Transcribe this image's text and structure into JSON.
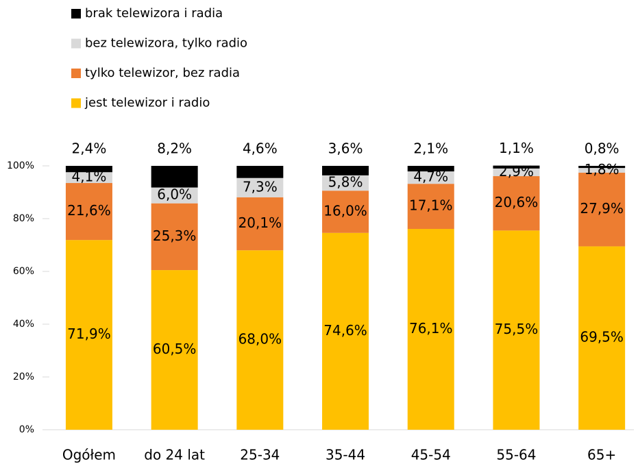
{
  "chart_data": {
    "type": "stacked_bar",
    "categories": [
      "Ogółem",
      "do 24 lat",
      "25-34",
      "35-44",
      "45-54",
      "55-64",
      "65+"
    ],
    "series": [
      {
        "name": "jest telewizor i radio",
        "color": "#ffc000",
        "values": [
          71.9,
          60.5,
          68.0,
          74.6,
          76.1,
          75.5,
          69.5
        ],
        "value_labels": [
          "71,9%",
          "60,5%",
          "68,0%",
          "74,6%",
          "76,1%",
          "75,5%",
          "69,5%"
        ]
      },
      {
        "name": "tylko telewizor, bez radia",
        "color": "#ed7d31",
        "values": [
          21.6,
          25.3,
          20.1,
          16.0,
          17.1,
          20.6,
          27.9
        ],
        "value_labels": [
          "21,6%",
          "25,3%",
          "20,1%",
          "16,0%",
          "17,1%",
          "20,6%",
          "27,9%"
        ]
      },
      {
        "name": "bez telewizora, tylko radio",
        "color": "#d9d9d9",
        "values": [
          4.1,
          6.0,
          7.3,
          5.8,
          4.7,
          2.9,
          1.8
        ],
        "value_labels": [
          "4,1%",
          "6,0%",
          "7,3%",
          "5,8%",
          "4,7%",
          "2,9%",
          "1,8%"
        ]
      },
      {
        "name": "brak telewizora i radia",
        "color": "#000000",
        "values": [
          2.4,
          8.2,
          4.6,
          3.6,
          2.1,
          1.1,
          0.8
        ],
        "value_labels": [
          "2,4%",
          "8,2%",
          "4,6%",
          "3,6%",
          "2,1%",
          "1,1%",
          "0,8%"
        ]
      }
    ],
    "ylim": [
      0,
      100
    ],
    "yticks": [
      {
        "value": 0,
        "label": "0%"
      },
      {
        "value": 20,
        "label": "20%"
      },
      {
        "value": 40,
        "label": "40%"
      },
      {
        "value": 60,
        "label": "60%"
      },
      {
        "value": 80,
        "label": "80%"
      },
      {
        "value": 100,
        "label": "100%"
      }
    ],
    "legend": "top-left"
  }
}
